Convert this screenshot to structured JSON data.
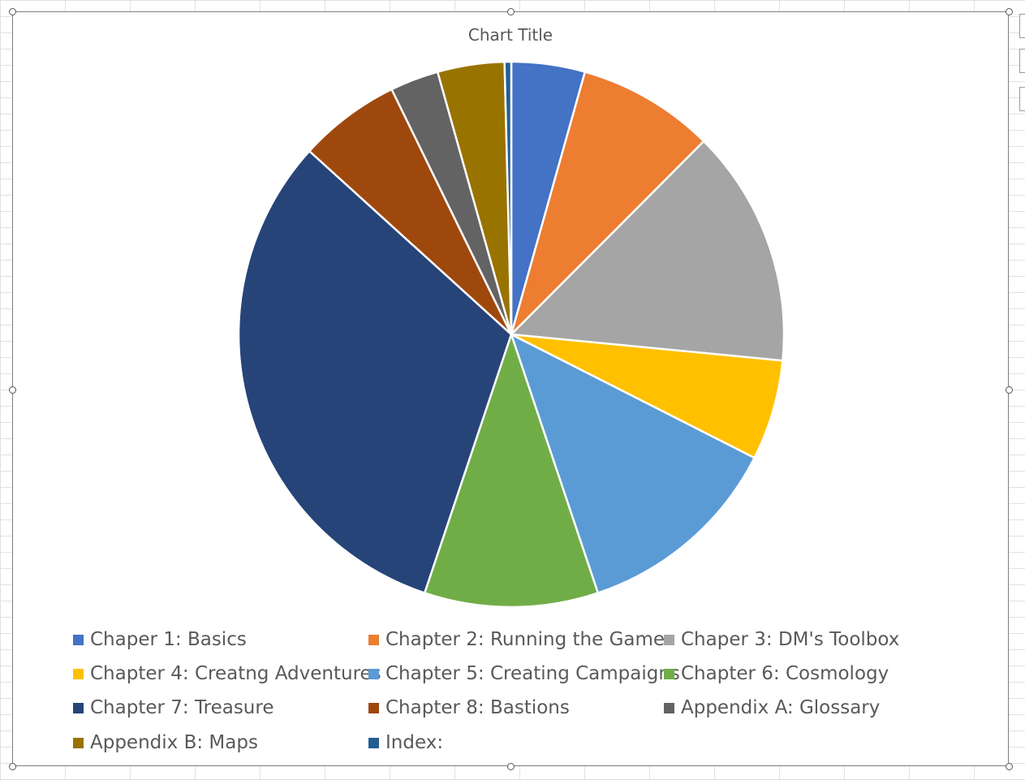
{
  "chart_data": {
    "type": "pie",
    "title": "Chart Title",
    "categories": [
      "Chaper 1: Basics",
      "Chapter 2: Running the Game",
      "Chaper 3: DM's Toolbox",
      "Chapter 4: Creatng Adventures",
      "Chapter 5: Creating Campaigns",
      "Chapter 6: Cosmology",
      "Chapter 7: Treasure",
      "Chapter 8: Bastions",
      "Appendix A: Glossary",
      "Appendix B: Maps",
      "Index:"
    ],
    "values": [
      4.4,
      8.2,
      14.2,
      6.0,
      12.5,
      10.4,
      31.9,
      6.1,
      2.9,
      4.0,
      0.4
    ],
    "colors": [
      "#4472c4",
      "#ed7d31",
      "#a5a5a5",
      "#ffc000",
      "#5b9bd5",
      "#70ad47",
      "#264478",
      "#9e480e",
      "#636363",
      "#997300",
      "#255e91"
    ],
    "legend_position": "bottom"
  }
}
